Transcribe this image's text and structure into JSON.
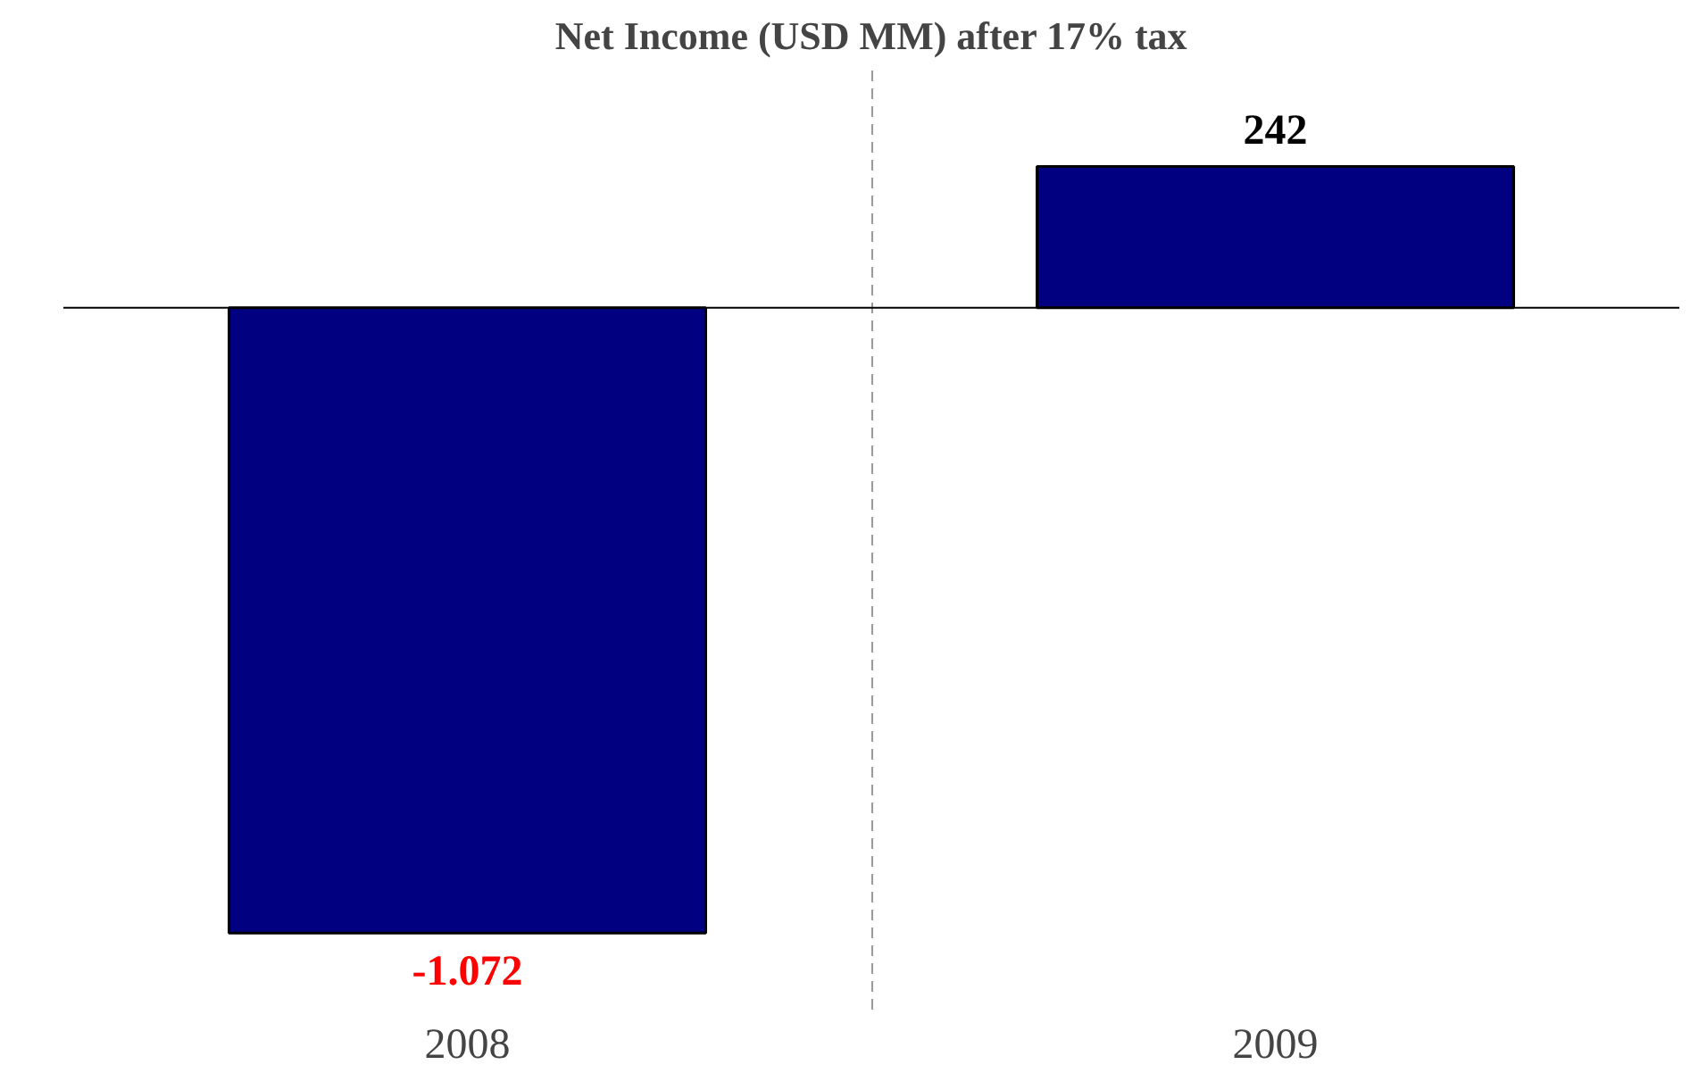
{
  "chart_data": {
    "type": "bar",
    "title": "Net Income (USD MM) after 17% tax",
    "categories": [
      "2008",
      "2009"
    ],
    "values": [
      -1072,
      242
    ],
    "value_labels": [
      "-1.072",
      "242"
    ],
    "color": "#000080",
    "grid": "x"
  }
}
